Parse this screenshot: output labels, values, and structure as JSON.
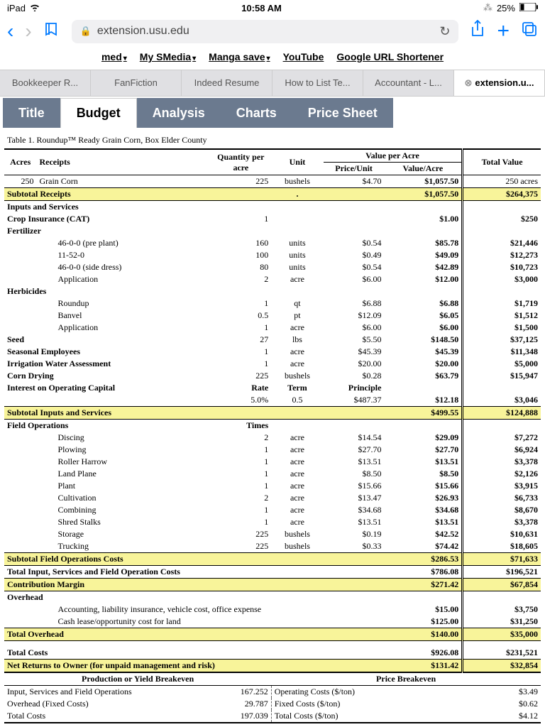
{
  "status": {
    "device": "iPad",
    "wifi": "᯾",
    "time": "10:58 AM",
    "bt": "✱",
    "battery": "25%"
  },
  "toolbar": {
    "url": "extension.usu.edu"
  },
  "bookmarks": [
    {
      "label": "med",
      "caret": true
    },
    {
      "label": "My SMedia",
      "caret": true
    },
    {
      "label": "Manga save",
      "caret": true
    },
    {
      "label": "YouTube",
      "caret": false
    },
    {
      "label": "Google URL Shortener",
      "caret": false
    }
  ],
  "browser_tabs": [
    "Bookkeeper R...",
    "FanFiction",
    "Indeed Resume",
    "How to List Te...",
    "Accountant - L...",
    "extension.u..."
  ],
  "page_tabs": [
    "Title",
    "Budget",
    "Analysis",
    "Charts",
    "Price Sheet"
  ],
  "active_page_tab": "Budget",
  "table_title": "Table 1. Roundup™ Ready Grain Corn, Box Elder County",
  "headers": {
    "acres": "Acres",
    "receipts": "Receipts",
    "qty": "Quantity per acre",
    "unit": "Unit",
    "vpa": "Value per Acre",
    "pu": "Price/Unit",
    "va": "Value/Acre",
    "tv": "Total Value"
  },
  "receipt_row": {
    "acres": "250",
    "name": "Grain Corn",
    "qty": "225",
    "unit": "bushels",
    "pu": "$4.70",
    "va": "$1,057.50",
    "tv": "250 acres"
  },
  "subtotal_receipts": {
    "label": "Subtotal Receipts",
    "va": "$1,057.50",
    "tv": "$264,375"
  },
  "inputs_header": "Inputs and Services",
  "crop_ins": {
    "label": "Crop Insurance (CAT)",
    "qty": "1",
    "va": "$1.00",
    "tv": "$250"
  },
  "fertilizer_label": "Fertilizer",
  "fertilizer": [
    {
      "name": "46-0-0 (pre plant)",
      "qty": "160",
      "unit": "units",
      "pu": "$0.54",
      "va": "$85.78",
      "tv": "$21,446"
    },
    {
      "name": "11-52-0",
      "qty": "100",
      "unit": "units",
      "pu": "$0.49",
      "va": "$49.09",
      "tv": "$12,273"
    },
    {
      "name": "46-0-0 (side dress)",
      "qty": "80",
      "unit": "units",
      "pu": "$0.54",
      "va": "$42.89",
      "tv": "$10,723"
    },
    {
      "name": "Application",
      "qty": "2",
      "unit": "acre",
      "pu": "$6.00",
      "va": "$12.00",
      "tv": "$3,000"
    }
  ],
  "herbicides_label": "Herbicides",
  "herbicides": [
    {
      "name": "Roundup",
      "qty": "1",
      "unit": "qt",
      "pu": "$6.88",
      "va": "$6.88",
      "tv": "$1,719"
    },
    {
      "name": "Banvel",
      "qty": "0.5",
      "unit": "pt",
      "pu": "$12.09",
      "va": "$6.05",
      "tv": "$1,512"
    },
    {
      "name": "Application",
      "qty": "1",
      "unit": "acre",
      "pu": "$6.00",
      "va": "$6.00",
      "tv": "$1,500"
    }
  ],
  "seed": {
    "label": "Seed",
    "qty": "27",
    "unit": "lbs",
    "pu": "$5.50",
    "va": "$148.50",
    "tv": "$37,125"
  },
  "seasonal": {
    "label": "Seasonal Employees",
    "qty": "1",
    "unit": "acre",
    "pu": "$45.39",
    "va": "$45.39",
    "tv": "$11,348"
  },
  "irrigation": {
    "label": "Irrigation Water Assessment",
    "qty": "1",
    "unit": "acre",
    "pu": "$20.00",
    "va": "$20.00",
    "tv": "$5,000"
  },
  "drying": {
    "label": "Corn Drying",
    "qty": "225",
    "unit": "bushels",
    "pu": "$0.28",
    "va": "$63.79",
    "tv": "$15,947"
  },
  "interest": {
    "label": "Interest on Operating Capital",
    "rate_h": "Rate",
    "term_h": "Term",
    "prin_h": "Principle"
  },
  "interest_row": {
    "rate": "5.0%",
    "term": "0.5",
    "prin": "$487.37",
    "va": "$12.18",
    "tv": "$3,046"
  },
  "subtotal_inputs": {
    "label": "Subtotal Inputs and Services",
    "va": "$499.55",
    "tv": "$124,888"
  },
  "field_ops_label": "Field Operations",
  "times_label": "Times",
  "field_ops": [
    {
      "name": "Discing",
      "qty": "2",
      "unit": "acre",
      "pu": "$14.54",
      "va": "$29.09",
      "tv": "$7,272"
    },
    {
      "name": "Plowing",
      "qty": "1",
      "unit": "acre",
      "pu": "$27.70",
      "va": "$27.70",
      "tv": "$6,924"
    },
    {
      "name": "Roller Harrow",
      "qty": "1",
      "unit": "acre",
      "pu": "$13.51",
      "va": "$13.51",
      "tv": "$3,378"
    },
    {
      "name": "Land Plane",
      "qty": "1",
      "unit": "acre",
      "pu": "$8.50",
      "va": "$8.50",
      "tv": "$2,126"
    },
    {
      "name": "Plant",
      "qty": "1",
      "unit": "acre",
      "pu": "$15.66",
      "va": "$15.66",
      "tv": "$3,915"
    },
    {
      "name": "Cultivation",
      "qty": "2",
      "unit": "acre",
      "pu": "$13.47",
      "va": "$26.93",
      "tv": "$6,733"
    },
    {
      "name": "Combining",
      "qty": "1",
      "unit": "acre",
      "pu": "$34.68",
      "va": "$34.68",
      "tv": "$8,670"
    },
    {
      "name": "Shred Stalks",
      "qty": "1",
      "unit": "acre",
      "pu": "$13.51",
      "va": "$13.51",
      "tv": "$3,378"
    },
    {
      "name": "Storage",
      "qty": "225",
      "unit": "bushels",
      "pu": "$0.19",
      "va": "$42.52",
      "tv": "$10,631"
    },
    {
      "name": "Trucking",
      "qty": "225",
      "unit": "bushels",
      "pu": "$0.33",
      "va": "$74.42",
      "tv": "$18,605"
    }
  ],
  "subtotal_field": {
    "label": "Subtotal Field Operations  Costs",
    "va": "$286.53",
    "tv": "$71,633"
  },
  "total_isf": {
    "label": "Total Input, Services and Field Operation Costs",
    "va": "$786.08",
    "tv": "$196,521"
  },
  "contrib": {
    "label": "Contribution Margin",
    "va": "$271.42",
    "tv": "$67,854"
  },
  "overhead_label": "Overhead",
  "overhead": [
    {
      "name": "Accounting, liability insurance, vehicle cost, office expense",
      "va": "$15.00",
      "tv": "$3,750"
    },
    {
      "name": "Cash lease/opportunity cost for land",
      "va": "$125.00",
      "tv": "$31,250"
    }
  ],
  "total_overhead": {
    "label": "Total Overhead",
    "va": "$140.00",
    "tv": "$35,000"
  },
  "total_costs": {
    "label": "Total Costs",
    "va": "$926.08",
    "tv": "$231,521"
  },
  "net_returns": {
    "label": "Net Returns to Owner (for unpaid management and risk)",
    "va": "$131.42",
    "tv": "$32,854"
  },
  "breakeven": {
    "prod_h": "Production or Yield Breakeven",
    "price_h": "Price Breakeven",
    "rows": [
      {
        "l": "Input, Services and Field Operations",
        "pv": "167.252",
        "pl": "Operating Costs ($/ton)",
        "pr": "$3.49"
      },
      {
        "l": "Overhead (Fixed Costs)",
        "pv": "29.787",
        "pl": "Fixed Costs ($/ton)",
        "pr": "$0.62"
      },
      {
        "l": "Total Costs",
        "pv": "197.039",
        "pl": "Total Costs ($/ton)",
        "pr": "$4.12"
      }
    ]
  }
}
